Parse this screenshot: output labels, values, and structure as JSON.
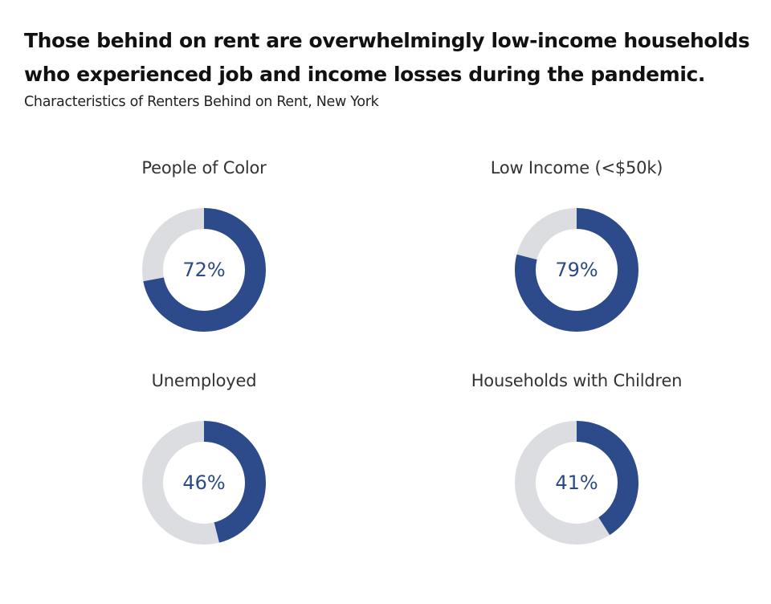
{
  "title": "Those behind on rent are overwhelmingly low-income households who experienced job and income losses during the pandemic.",
  "subtitle": "Characteristics of Renters Behind on Rent,  New York",
  "colors": {
    "filled": "#2d4b8b",
    "remainder": "#dcdde0",
    "value_text": "#2b4a8a"
  },
  "chart_data": [
    {
      "type": "pie",
      "title": "People of Color",
      "value": 72,
      "value_label": "72%"
    },
    {
      "type": "pie",
      "title": "Low Income (<$50k)",
      "value": 79,
      "value_label": "79%"
    },
    {
      "type": "pie",
      "title": "Unemployed",
      "value": 46,
      "value_label": "46%"
    },
    {
      "type": "pie",
      "title": "Households with Children",
      "value": 41,
      "value_label": "41%"
    }
  ]
}
